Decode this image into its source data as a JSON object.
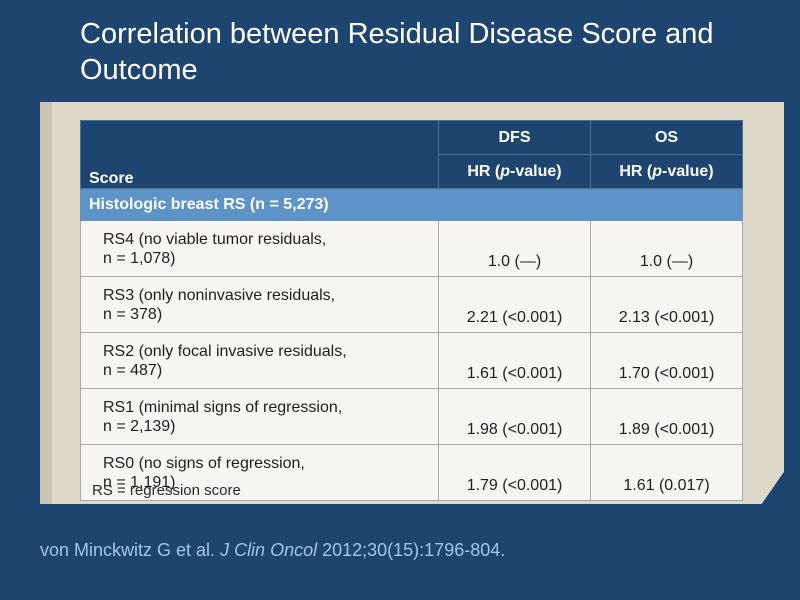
{
  "title": "Correlation between Residual Disease Score and Outcome",
  "table": {
    "headers": {
      "score": "Score",
      "dfs": "DFS",
      "os": "OS",
      "hr_prefix": "HR (",
      "hr_p": "p",
      "hr_suffix": "-value)"
    },
    "section": "Histologic breast RS (n = 5,273)",
    "rows": [
      {
        "score": "RS4 (no viable tumor residuals,\nn = 1,078)",
        "dfs": "1.0 (—)",
        "os": "1.0 (—)"
      },
      {
        "score": "RS3 (only noninvasive residuals,\nn = 378)",
        "dfs": "2.21 (<0.001)",
        "os": "2.13 (<0.001)"
      },
      {
        "score": "RS2 (only focal invasive residuals,\nn = 487)",
        "dfs": "1.61 (<0.001)",
        "os": "1.70 (<0.001)"
      },
      {
        "score": "RS1 (minimal signs of regression,\nn = 2,139)",
        "dfs": "1.98 (<0.001)",
        "os": "1.89 (<0.001)"
      },
      {
        "score": "RS0 (no signs of regression,\nn = 1,191)",
        "dfs": "1.79 (<0.001)",
        "os": "1.61 (0.017)"
      }
    ]
  },
  "footnote": "RS = regression score",
  "citation": {
    "authors": "von Minckwitz G et al. ",
    "journal": "J Clin Oncol",
    "details": " 2012;30(15):1796-804."
  }
}
